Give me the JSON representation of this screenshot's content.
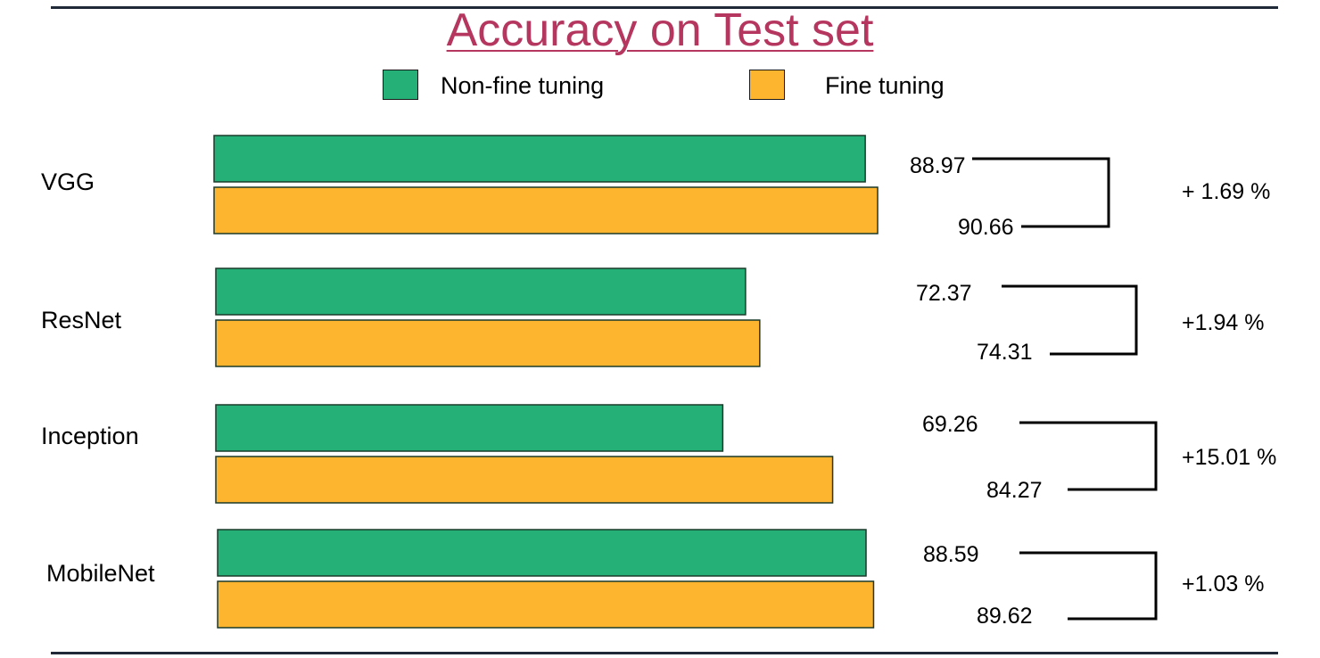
{
  "chart_data": {
    "type": "bar",
    "orientation": "horizontal",
    "title": "Accuracy on Test set",
    "categories": [
      "VGG",
      "ResNet",
      "Inception",
      "MobileNet"
    ],
    "series": [
      {
        "name": "Non-fine tuning",
        "color": "#24b077",
        "values": [
          88.97,
          72.37,
          69.26,
          88.59
        ],
        "labels": [
          "88.97",
          "72.37",
          "69.26",
          "88.59"
        ]
      },
      {
        "name": "Fine tuning",
        "color": "#fdb52f",
        "values": [
          90.66,
          74.31,
          84.27,
          89.62
        ],
        "labels": [
          "90.66",
          "74.31",
          "84.27",
          "89.62"
        ]
      }
    ],
    "differences": [
      "+ 1.69 %",
      "+1.94 %",
      "+15.01 %",
      "+1.03 %"
    ],
    "legend_position": "top-center",
    "grid": false
  }
}
